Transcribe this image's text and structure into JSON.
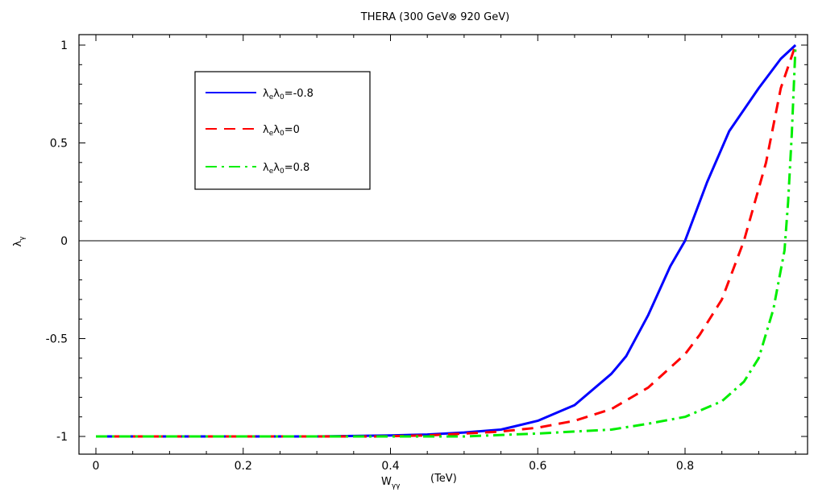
{
  "chart_data": {
    "type": "line",
    "title": "THERA (300 GeV⊗ 920 GeV)",
    "xlabel_main": "W",
    "xlabel_sub": "γγ",
    "xlabel_unit": "(TeV)",
    "ylabel_main": "λ",
    "ylabel_sub": "γ",
    "xlim": [
      0,
      0.96
    ],
    "ylim": [
      -1.05,
      1.05
    ],
    "x_ticks": [
      0,
      0.2,
      0.4,
      0.6,
      0.8
    ],
    "x_tick_labels": [
      "0",
      "0.2",
      "0.4",
      "0.6",
      "0.8"
    ],
    "y_ticks": [
      -1,
      -0.5,
      0,
      0.5,
      1
    ],
    "y_tick_labels": [
      "-1",
      "-0.5",
      "0",
      "0.5",
      "1"
    ],
    "legend_position": "top-left",
    "reference_line_y": 0,
    "series": [
      {
        "name_main": "λ",
        "name_sub1": "e",
        "name_mid": "λ",
        "name_sub2": "0",
        "name_value": "=-0.8",
        "color": "#0000ff",
        "dash": "solid",
        "points": [
          [
            0,
            -1
          ],
          [
            0.3,
            -1
          ],
          [
            0.4,
            -0.995
          ],
          [
            0.45,
            -0.99
          ],
          [
            0.5,
            -0.98
          ],
          [
            0.55,
            -0.965
          ],
          [
            0.6,
            -0.92
          ],
          [
            0.65,
            -0.84
          ],
          [
            0.7,
            -0.68
          ],
          [
            0.72,
            -0.59
          ],
          [
            0.75,
            -0.38
          ],
          [
            0.78,
            -0.13
          ],
          [
            0.8,
            0
          ],
          [
            0.83,
            0.3
          ],
          [
            0.86,
            0.56
          ],
          [
            0.9,
            0.78
          ],
          [
            0.93,
            0.93
          ],
          [
            0.95,
            1.0
          ]
        ]
      },
      {
        "name_main": "λ",
        "name_sub1": "e",
        "name_mid": "λ",
        "name_sub2": "0",
        "name_value": "=0",
        "color": "#ff0000",
        "dash": "dashed",
        "points": [
          [
            0,
            -1
          ],
          [
            0.38,
            -1
          ],
          [
            0.45,
            -0.995
          ],
          [
            0.5,
            -0.985
          ],
          [
            0.55,
            -0.975
          ],
          [
            0.6,
            -0.955
          ],
          [
            0.65,
            -0.92
          ],
          [
            0.7,
            -0.86
          ],
          [
            0.75,
            -0.75
          ],
          [
            0.8,
            -0.58
          ],
          [
            0.82,
            -0.48
          ],
          [
            0.85,
            -0.3
          ],
          [
            0.88,
            0
          ],
          [
            0.91,
            0.4
          ],
          [
            0.93,
            0.78
          ],
          [
            0.95,
            1.0
          ]
        ]
      },
      {
        "name_main": "λ",
        "name_sub1": "e",
        "name_mid": "λ",
        "name_sub2": "0",
        "name_value": "=0.8",
        "color": "#00ee00",
        "dash": "dashdot",
        "points": [
          [
            0,
            -1
          ],
          [
            0.5,
            -1
          ],
          [
            0.6,
            -0.985
          ],
          [
            0.65,
            -0.975
          ],
          [
            0.7,
            -0.965
          ],
          [
            0.75,
            -0.935
          ],
          [
            0.8,
            -0.9
          ],
          [
            0.85,
            -0.82
          ],
          [
            0.88,
            -0.72
          ],
          [
            0.9,
            -0.6
          ],
          [
            0.92,
            -0.35
          ],
          [
            0.935,
            -0.05
          ],
          [
            0.94,
            0.2
          ],
          [
            0.945,
            0.55
          ],
          [
            0.95,
            1.0
          ]
        ]
      }
    ]
  }
}
